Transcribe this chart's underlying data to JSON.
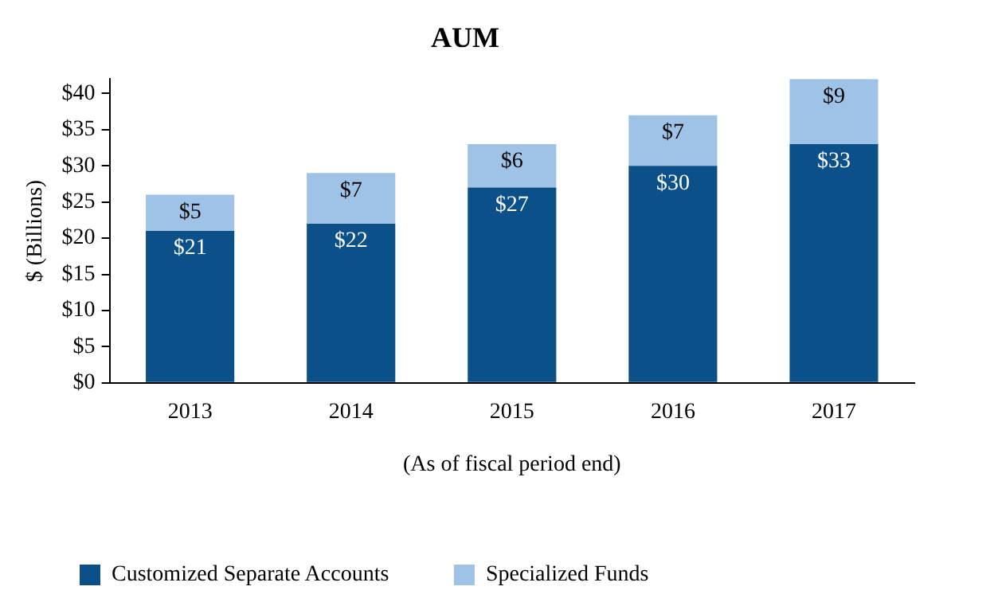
{
  "chart_data": {
    "type": "bar",
    "title": "AUM",
    "xlabel": "(As of fiscal period end)",
    "ylabel": "$ (Billions)",
    "categories": [
      "2013",
      "2014",
      "2015",
      "2016",
      "2017"
    ],
    "stacked": true,
    "series": [
      {
        "name": "Customized Separate Accounts",
        "color": "#0b5089",
        "values": [
          21,
          22,
          27,
          30,
          33
        ],
        "value_labels": [
          "$21",
          "$22",
          "$27",
          "$30",
          "$33"
        ]
      },
      {
        "name": "Specialized Funds",
        "color": "#9ec3e6",
        "values": [
          5,
          7,
          6,
          7,
          9
        ],
        "value_labels": [
          "$5",
          "$7",
          "$6",
          "$7",
          "$9"
        ]
      }
    ],
    "ylim": [
      0,
      42
    ],
    "yticks": [
      {
        "value": 0,
        "label": "$0"
      },
      {
        "value": 5,
        "label": "$5"
      },
      {
        "value": 10,
        "label": "$10"
      },
      {
        "value": 15,
        "label": "$15"
      },
      {
        "value": 20,
        "label": "$20"
      },
      {
        "value": 25,
        "label": "$25"
      },
      {
        "value": 30,
        "label": "$30"
      },
      {
        "value": 35,
        "label": "$35"
      },
      {
        "value": 40,
        "label": "$40"
      }
    ],
    "grid": false,
    "legend": "bottom"
  }
}
